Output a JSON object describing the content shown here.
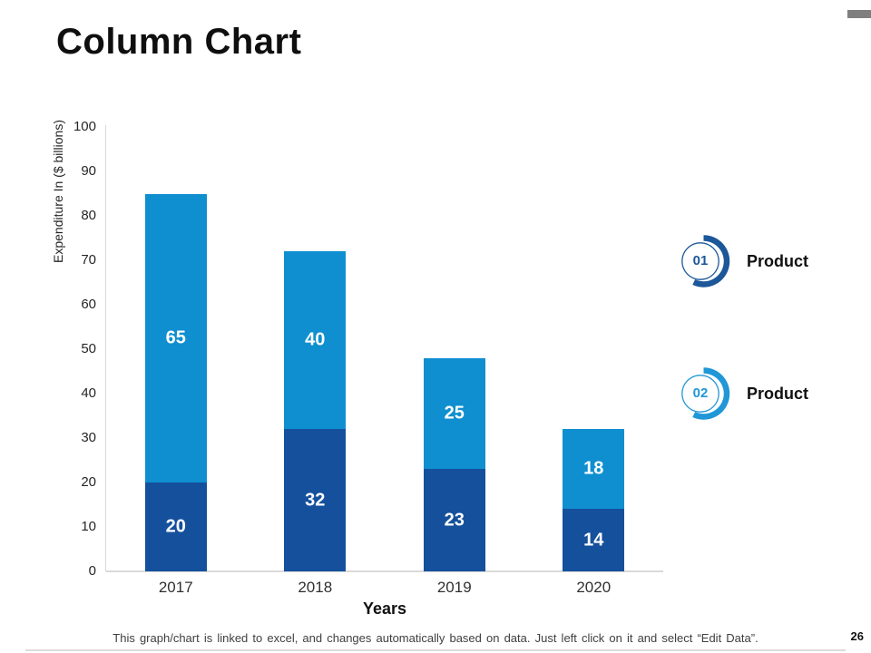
{
  "slide": {
    "title": "Column Chart",
    "page_number": "26",
    "footer_note": "This graph/chart is linked to excel, and changes automatically based on data. Just left click on it and select “Edit Data”.",
    "top_right_marker_color": "#7F7F7F"
  },
  "chart_data": {
    "type": "bar",
    "stacked": true,
    "categories": [
      "2017",
      "2018",
      "2019",
      "2020"
    ],
    "series": [
      {
        "name": "Product 01",
        "color": "#15509C",
        "values": [
          20,
          32,
          23,
          14
        ]
      },
      {
        "name": "Product 02",
        "color": "#0F8FD0",
        "values": [
          65,
          40,
          25,
          18
        ]
      }
    ],
    "totals": [
      85,
      72,
      48,
      32
    ],
    "xlabel": "Years",
    "ylabel": "Expenditure In ($ billions)",
    "ylim": [
      0,
      100
    ],
    "yticks": [
      0,
      10,
      20,
      30,
      40,
      50,
      60,
      70,
      80,
      90,
      100
    ],
    "grid": false,
    "bar_value_labels": true,
    "legend_position": "right"
  },
  "legend": {
    "items": [
      {
        "number": "01",
        "label": "Product",
        "color": "#1B5799"
      },
      {
        "number": "02",
        "label": "Product",
        "color": "#2097D6"
      }
    ]
  }
}
